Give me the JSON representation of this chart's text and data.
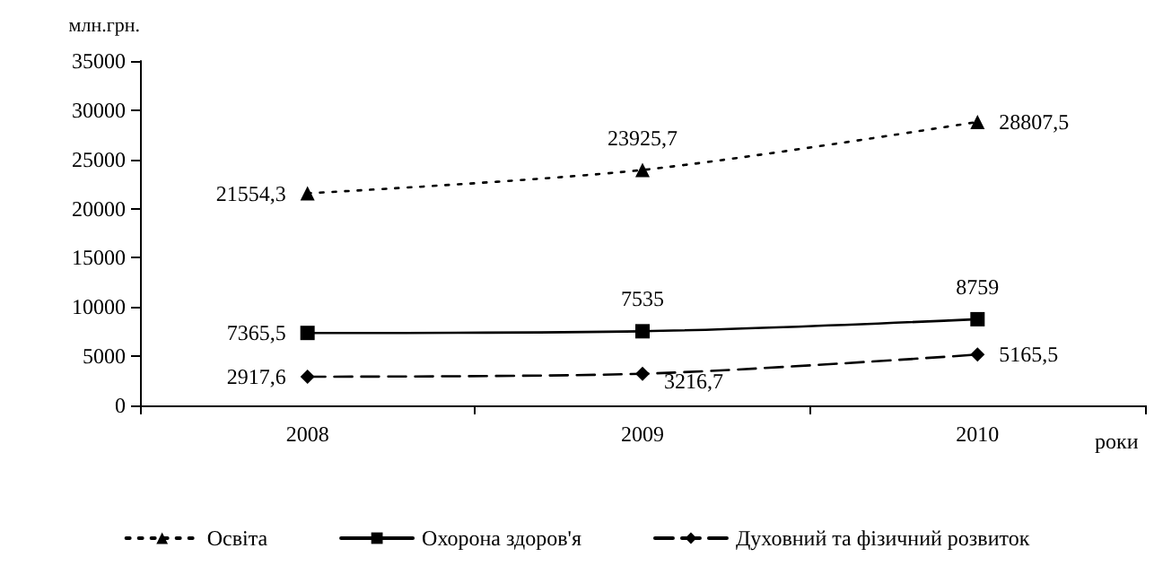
{
  "chart_data": {
    "type": "line",
    "ylabel": "млн.грн.",
    "xlabel": "роки",
    "categories": [
      "2008",
      "2009",
      "2010"
    ],
    "series": [
      {
        "name": "Освіта",
        "color": "#000000",
        "marker": "triangle",
        "line_style": "dotted",
        "values": [
          21554.3,
          23925.7,
          28807.5
        ],
        "value_labels": [
          "21554,3",
          "23925,7",
          "28807,5"
        ]
      },
      {
        "name": "Охорона здоров'я",
        "color": "#000000",
        "marker": "square",
        "line_style": "solid",
        "values": [
          7365.5,
          7535,
          8759
        ],
        "value_labels": [
          "7365,5",
          "7535",
          "8759"
        ]
      },
      {
        "name": "Духовний та фізичний розвиток",
        "color": "#000000",
        "marker": "diamond",
        "line_style": "dashed",
        "values": [
          2917.6,
          3216.7,
          5165.5
        ],
        "value_labels": [
          "2917,6",
          "3216,7",
          "5165,5"
        ]
      }
    ],
    "ylim": [
      0,
      35000
    ],
    "yticks": [
      0,
      5000,
      10000,
      15000,
      20000,
      25000,
      30000,
      35000
    ],
    "grid": false,
    "legend": "bottom"
  }
}
